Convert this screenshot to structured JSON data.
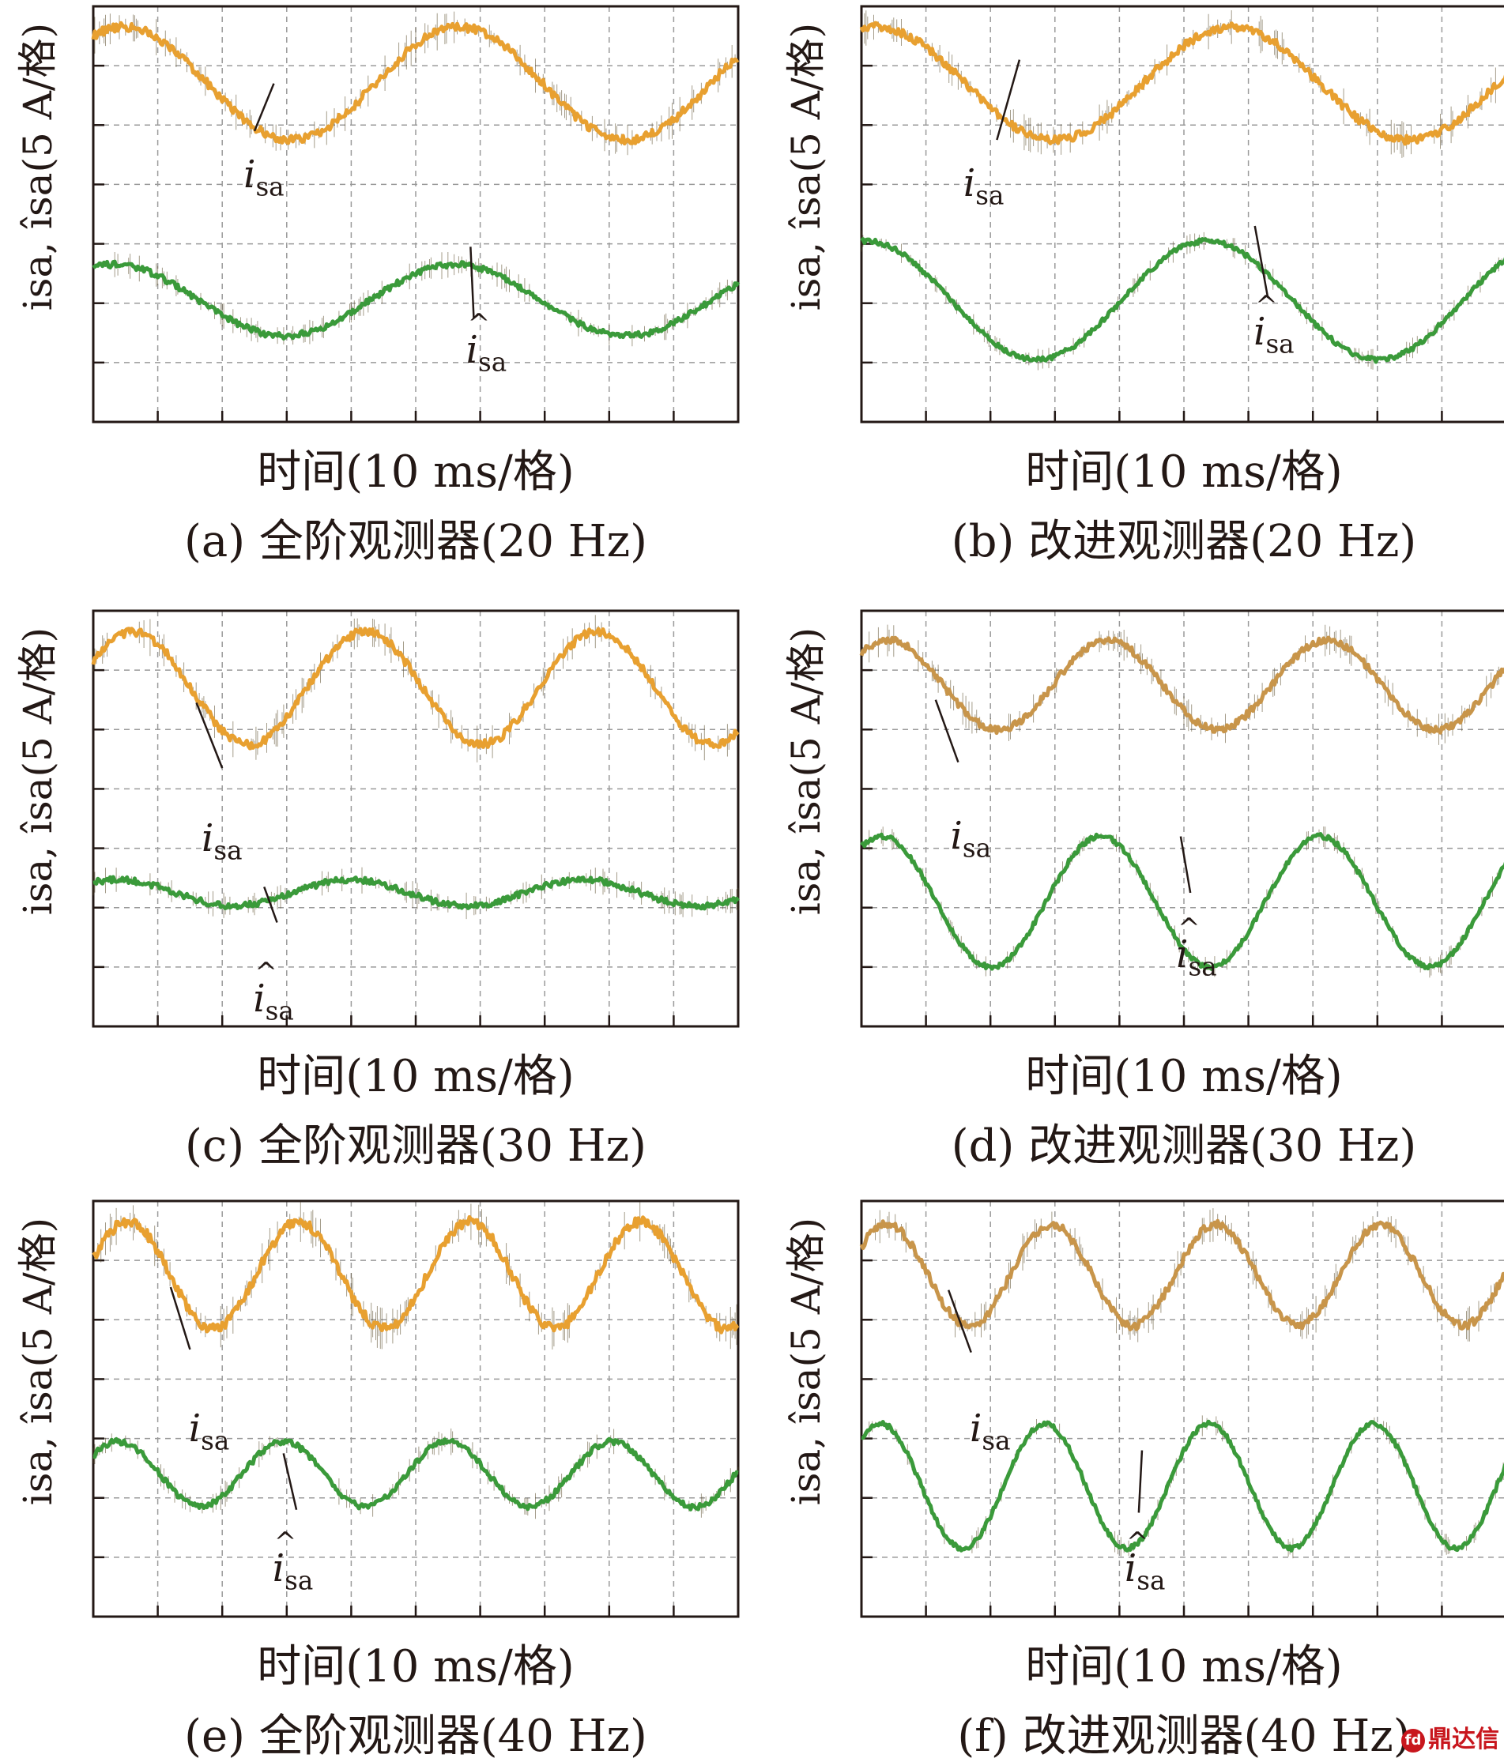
{
  "figure": {
    "watermark_text": "鼎达信"
  },
  "chart_data": [
    {
      "id": "a",
      "type": "line",
      "caption": "(a) 全阶观测器(20 Hz)",
      "xlabel": "时间(10 ms/格)",
      "ylabel": "isa, îsa(5 A/格)",
      "x_divisions": 10,
      "y_divisions": 7,
      "xlim": [
        0,
        10
      ],
      "ylim": [
        0,
        7
      ],
      "series": [
        {
          "name": "isa",
          "color": "#e8a030",
          "noise": 0.07,
          "values_fn": {
            "offset": 5.7,
            "amplitude": 0.95,
            "period": 5.2,
            "phase": 1.0
          }
        },
        {
          "name": "îsa",
          "color": "#3a9a3a",
          "noise": 0.05,
          "values_fn": {
            "offset": 2.05,
            "amplitude": 0.6,
            "period": 5.3,
            "phase": 1.2
          }
        }
      ],
      "labels": [
        {
          "text": "isa",
          "hat": false,
          "x": 2.55,
          "y": 4.35,
          "pointer": [
            2.8,
            5.7,
            2.5,
            4.9
          ]
        },
        {
          "text": "isa",
          "hat": true,
          "x": 6.0,
          "y": 1.4,
          "pointer": [
            5.85,
            2.95,
            5.9,
            1.75
          ]
        }
      ]
    },
    {
      "id": "b",
      "type": "line",
      "caption": "(b) 改进观测器(20 Hz)",
      "xlabel": "时间(10 ms/格)",
      "ylabel": "isa, îsa(5 A/格)",
      "x_divisions": 10,
      "y_divisions": 7,
      "xlim": [
        0,
        10
      ],
      "ylim": [
        0,
        7
      ],
      "series": [
        {
          "name": "isa",
          "color": "#e8a030",
          "noise": 0.07,
          "values_fn": {
            "offset": 5.7,
            "amplitude": 0.95,
            "period": 5.5,
            "phase": 1.3
          }
        },
        {
          "name": "îsa",
          "color": "#3a9a3a",
          "noise": 0.04,
          "values_fn": {
            "offset": 2.05,
            "amplitude": 1.0,
            "period": 5.3,
            "phase": 1.5
          }
        }
      ],
      "labels": [
        {
          "text": "isa",
          "hat": false,
          "x": 1.8,
          "y": 4.2,
          "pointer": [
            2.45,
            6.1,
            2.1,
            4.75
          ]
        },
        {
          "text": "isa",
          "hat": true,
          "x": 6.3,
          "y": 1.7,
          "pointer": [
            6.1,
            3.3,
            6.3,
            2.1
          ]
        }
      ]
    },
    {
      "id": "c",
      "type": "line",
      "caption": "(c) 全阶观测器(30 Hz)",
      "xlabel": "时间(10 ms/格)",
      "ylabel": "isa, îsa(5 A/格)",
      "x_divisions": 10,
      "y_divisions": 7,
      "xlim": [
        0,
        10
      ],
      "ylim": [
        0,
        7
      ],
      "series": [
        {
          "name": "isa",
          "color": "#e8a030",
          "noise": 0.07,
          "values_fn": {
            "offset": 5.7,
            "amplitude": 0.95,
            "period": 3.6,
            "phase": 0.5
          }
        },
        {
          "name": "îsa",
          "color": "#3a9a3a",
          "noise": 0.05,
          "values_fn": {
            "offset": 2.25,
            "amplitude": 0.22,
            "period": 3.6,
            "phase": 0.9
          }
        }
      ],
      "labels": [
        {
          "text": "isa",
          "hat": false,
          "x": 1.9,
          "y": 3.35,
          "pointer": [
            1.6,
            5.45,
            2.0,
            4.35
          ]
        },
        {
          "text": "isa",
          "hat": true,
          "x": 2.7,
          "y": 0.65,
          "pointer": [
            2.65,
            2.35,
            2.85,
            1.75
          ]
        }
      ]
    },
    {
      "id": "d",
      "type": "line",
      "caption": "(d) 改进观测器(30 Hz)",
      "xlabel": "时间(10 ms/格)",
      "ylabel": "isa, îsa(5 A/格)",
      "x_divisions": 10,
      "y_divisions": 7,
      "xlim": [
        0,
        10
      ],
      "ylim": [
        0,
        7
      ],
      "series": [
        {
          "name": "isa",
          "color": "#c8954a",
          "noise": 0.06,
          "values_fn": {
            "offset": 5.75,
            "amplitude": 0.75,
            "period": 3.4,
            "phase": 0.8
          }
        },
        {
          "name": "îsa",
          "color": "#3a9a3a",
          "noise": 0.04,
          "values_fn": {
            "offset": 2.1,
            "amplitude": 1.1,
            "period": 3.4,
            "phase": 1.0
          }
        }
      ],
      "labels": [
        {
          "text": "isa",
          "hat": false,
          "x": 1.6,
          "y": 3.4,
          "pointer": [
            1.15,
            5.5,
            1.5,
            4.45
          ]
        },
        {
          "text": "isa",
          "hat": true,
          "x": 5.1,
          "y": 1.4,
          "pointer": [
            4.95,
            3.2,
            5.1,
            2.25
          ]
        }
      ]
    },
    {
      "id": "e",
      "type": "line",
      "caption": "(e) 全阶观测器(40 Hz)",
      "xlabel": "时间(10 ms/格)",
      "ylabel": "isa, îsa(5 A/格)",
      "x_divisions": 10,
      "y_divisions": 7,
      "xlim": [
        0,
        10
      ],
      "ylim": [
        0,
        7
      ],
      "series": [
        {
          "name": "isa",
          "color": "#e8a030",
          "noise": 0.08,
          "values_fn": {
            "offset": 5.75,
            "amplitude": 0.9,
            "period": 2.65,
            "phase": 0.3
          }
        },
        {
          "name": "îsa",
          "color": "#3a9a3a",
          "noise": 0.05,
          "values_fn": {
            "offset": 2.4,
            "amplitude": 0.55,
            "period": 2.55,
            "phase": 0.6
          }
        }
      ],
      "labels": [
        {
          "text": "isa",
          "hat": false,
          "x": 1.7,
          "y": 3.35,
          "pointer": [
            1.2,
            5.55,
            1.5,
            4.5
          ]
        },
        {
          "text": "isa",
          "hat": true,
          "x": 3.0,
          "y": 1.0,
          "pointer": [
            2.95,
            2.75,
            3.15,
            1.8
          ]
        }
      ]
    },
    {
      "id": "f",
      "type": "line",
      "caption": "(f) 改进观测器(40 Hz)",
      "xlabel": "时间(10 ms/格)",
      "ylabel": "isa, îsa(5 A/格)",
      "x_divisions": 10,
      "y_divisions": 7,
      "xlim": [
        0,
        10
      ],
      "ylim": [
        0,
        7
      ],
      "series": [
        {
          "name": "isa",
          "color": "#c8954a",
          "noise": 0.07,
          "values_fn": {
            "offset": 5.75,
            "amplitude": 0.85,
            "period": 2.55,
            "phase": 0.6
          }
        },
        {
          "name": "îsa",
          "color": "#3a9a3a",
          "noise": 0.04,
          "values_fn": {
            "offset": 2.2,
            "amplitude": 1.05,
            "period": 2.55,
            "phase": 0.85
          }
        }
      ],
      "labels": [
        {
          "text": "isa",
          "hat": false,
          "x": 1.9,
          "y": 3.35,
          "pointer": [
            1.35,
            5.5,
            1.7,
            4.45
          ]
        },
        {
          "text": "isa",
          "hat": true,
          "x": 4.3,
          "y": 1.0,
          "pointer": [
            4.35,
            2.8,
            4.3,
            1.75
          ]
        }
      ]
    }
  ]
}
